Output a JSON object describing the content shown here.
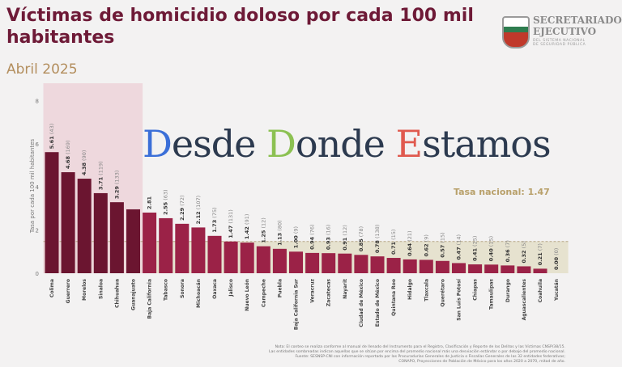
{
  "header": {
    "title": "Víctimas de homicidio doloso por cada 100 mil habitantes",
    "subtitle": "Abril 2025"
  },
  "logo": {
    "line1": "SECRETARIADO",
    "line2": "EJECUTIVO",
    "line3": "DEL SISTEMA NACIONAL",
    "line4": "DE SEGURIDAD PÚBLICA"
  },
  "watermark": {
    "parts": [
      {
        "t": "D",
        "color": "#3b6fd8"
      },
      {
        "t": "esde ",
        "color": "#2c3a4f"
      },
      {
        "t": "D",
        "color": "#8cc152"
      },
      {
        "t": "onde ",
        "color": "#2c3a4f"
      },
      {
        "t": "E",
        "color": "#e05a4f"
      },
      {
        "t": "stamos",
        "color": "#2c3a4f"
      }
    ]
  },
  "footnote": [
    "Nota: El conteo se realiza conforme al manual de llenado del Instrumento para el Registro, Clasificación y Reporte de los Delitos y las Víctimas CNSP/38/15.",
    "Las entidades sombreadas indican aquellas que se sitúan por encima del promedio nacional más una desviación estándar o por debajo del promedio nacional.",
    "Fuente: SESNSP-CNI con información reportada por las Procuradurías Generales de Justicia o Fiscalías Generales de las 32 entidades federativas;",
    "CONAPO, Proyecciones de Población de México para los años 2020 a 2070, mitad de año."
  ],
  "colors": {
    "high": "#6b1530",
    "normal": "#9b2247",
    "highlight_band": "#ecd3d9",
    "low_band": "#e6e2cf",
    "avg_line": "#b8a888"
  },
  "chart_data": {
    "type": "bar",
    "ylabel": "Tasa por cada 100 mil habitantes",
    "ylim": [
      0,
      8.6
    ],
    "yticks": [
      0,
      2,
      4,
      6,
      8
    ],
    "grid": false,
    "reference_line": {
      "label": "Tasa nacional: 1.47",
      "value": 1.47
    },
    "categories": [
      "Colima",
      "Guerrero",
      "Morelos",
      "Sinaloa",
      "Chihuahua",
      "Guanajuato",
      "Baja California",
      "Tabasco",
      "Sonora",
      "Michoacán",
      "Oaxaca",
      "Jalisco",
      "Nuevo León",
      "Campeche",
      "Puebla",
      "Baja California Sur",
      "Veracruz",
      "Zacatecas",
      "Nayarit",
      "Ciudad de México",
      "Estado de México",
      "Quintana Roo",
      "Hidalgo",
      "Tlaxcala",
      "Querétaro",
      "San Luis Potosí",
      "Chiapas",
      "Tamaulipas",
      "Durango",
      "Aguascalientes",
      "Coahuila",
      "Yucatán"
    ],
    "values": [
      5.61,
      4.68,
      4.38,
      3.71,
      3.29,
      2.96,
      2.81,
      2.55,
      2.29,
      2.12,
      1.73,
      1.47,
      1.42,
      1.25,
      1.13,
      1.0,
      0.94,
      0.93,
      0.91,
      0.85,
      0.78,
      0.71,
      0.64,
      0.62,
      0.57,
      0.47,
      0.41,
      0.4,
      0.36,
      0.32,
      0.21,
      0.0
    ],
    "value_labels": [
      "5.61",
      "4.68",
      "4.38",
      "3.71",
      "3.29",
      "",
      "2.81",
      "2.55",
      "2.29",
      "2.12",
      "1.73",
      "1.47",
      "1.42",
      "1.25",
      "1.13",
      "1.00",
      "0.94",
      "0.93",
      "0.91",
      "0.85",
      "0.78",
      "0.71",
      "0.64",
      "0.62",
      "0.57",
      "0.47",
      "0.41",
      "0.40",
      "0.36",
      "0.32",
      "0.21",
      "0.00"
    ],
    "counts": [
      "(43)",
      "(169)",
      "(90)",
      "(119)",
      "(133)",
      "",
      "",
      "(63)",
      "(72)",
      "(107)",
      "(75)",
      "(131)",
      "(91)",
      "(12)",
      "(80)",
      "(9)",
      "(76)",
      "(16)",
      "(12)",
      "(78)",
      "(138)",
      "(15)",
      "(21)",
      "(9)",
      "(15)",
      "(14)",
      "(25)",
      "(15)",
      "(7)",
      "(5)",
      "(7)",
      "(0)"
    ],
    "high_group_count": 6
  }
}
